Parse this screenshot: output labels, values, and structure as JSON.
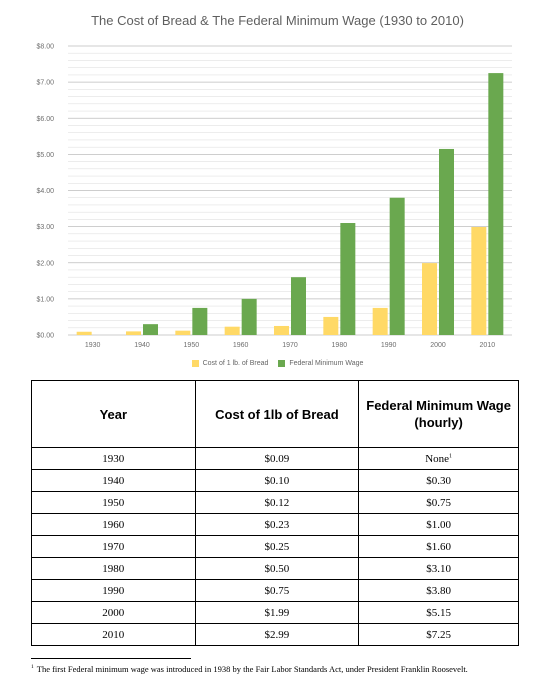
{
  "chart_data": {
    "type": "bar",
    "title": "The Cost of Bread & The Federal Minimum Wage (1930 to 2010)",
    "categories": [
      "1930",
      "1940",
      "1950",
      "1960",
      "1970",
      "1980",
      "1990",
      "2000",
      "2010"
    ],
    "series": [
      {
        "name": "Cost of 1 lb. of Bread",
        "color": "#ffd966",
        "values": [
          0.09,
          0.1,
          0.12,
          0.23,
          0.25,
          0.5,
          0.75,
          1.99,
          2.99
        ]
      },
      {
        "name": "Federal Minimum Wage",
        "color": "#6aa84f",
        "values": [
          0,
          0.3,
          0.75,
          1.0,
          1.6,
          3.1,
          3.8,
          5.15,
          7.25
        ]
      }
    ],
    "ylim": [
      0,
      8
    ],
    "yticks": [
      "$0.00",
      "$1.00",
      "$2.00",
      "$3.00",
      "$4.00",
      "$5.00",
      "$6.00",
      "$7.00",
      "$8.00"
    ],
    "grid": true,
    "legend": "bottom"
  },
  "table": {
    "headers": [
      "Year",
      "Cost of 1lb of Bread",
      "Federal Minimum Wage (hourly)"
    ],
    "rows": [
      [
        "1930",
        "$0.09",
        "None"
      ],
      [
        "1940",
        "$0.10",
        "$0.30"
      ],
      [
        "1950",
        "$0.12",
        "$0.75"
      ],
      [
        "1960",
        "$0.23",
        "$1.00"
      ],
      [
        "1970",
        "$0.25",
        "$1.60"
      ],
      [
        "1980",
        "$0.50",
        "$3.10"
      ],
      [
        "1990",
        "$0.75",
        "$3.80"
      ],
      [
        "2000",
        "$1.99",
        "$5.15"
      ],
      [
        "2010",
        "$2.99",
        "$7.25"
      ]
    ],
    "note_marker": "1"
  },
  "footnote": {
    "marker": "1",
    "text": "The first Federal minimum wage was introduced in 1938 by the Fair Labor Standards Act, under President Franklin Roosevelt."
  }
}
